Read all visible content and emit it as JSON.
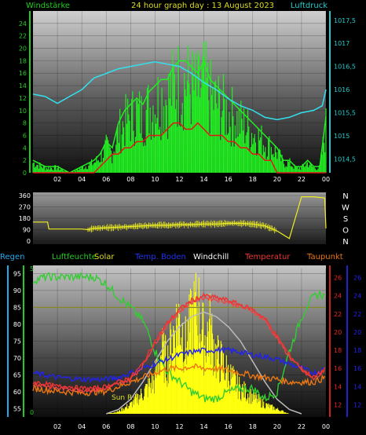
{
  "header": {
    "left_label": "Windstärke",
    "title": "24 hour graph day : 13 August 2023",
    "right_label": "Luftdruck"
  },
  "legend_row": {
    "regen": "Regen",
    "luftfeuchte": "Luftfeuchte",
    "solar": "Solar",
    "temp_boden": "Temp. Boden",
    "windchill": "Windchill",
    "temperatur": "Temperatur",
    "taupunkt": "Taupunkt"
  },
  "annotations": {
    "sun_rise": "Sun R"
  },
  "colors": {
    "wind": "#22ee22",
    "gust": "#e01818",
    "pressure": "#33e0ee",
    "direction": "#eeee22",
    "humidity": "#33cc33",
    "solar": "#ffff10",
    "soil_temp": "#2222ee",
    "windchill": "#ffffff",
    "temperature": "#ee3333",
    "dewpoint": "#ee7711",
    "solar_max": "#bbbbbb",
    "rain": "#888822",
    "ink_green": "#22cc22",
    "ink_red": "#ee2222",
    "ink_blue": "#2222ee",
    "ink_cyan": "#22cccc"
  },
  "chart_data": [
    {
      "type": "line",
      "name_ref": "wind",
      "x_ticks": [
        "02",
        "04",
        "06",
        "08",
        "10",
        "12",
        "14",
        "16",
        "18",
        "20",
        "22",
        "00"
      ],
      "xlim": [
        0,
        24
      ],
      "y_left_ticks": [
        "0",
        "2",
        "4",
        "6",
        "8",
        "10",
        "12",
        "14",
        "16",
        "18",
        "20",
        "22",
        "24"
      ],
      "ylim_left": [
        0,
        26
      ],
      "y_right_ticks": [
        "1014,5",
        "1015",
        "1015,5",
        "1016",
        "1016,5",
        "1017",
        "1017,5"
      ],
      "ylim_right": [
        1014.2,
        1017.7
      ],
      "series": [
        {
          "key": "wind",
          "x": [
            0,
            1,
            2,
            3,
            4,
            5,
            5.5,
            6,
            6.5,
            7,
            7.5,
            8,
            8.5,
            9,
            9.5,
            10,
            10.5,
            11,
            11.5,
            12,
            12.5,
            13,
            13.5,
            14,
            14.5,
            15,
            15.5,
            16,
            16.5,
            17,
            17.5,
            18,
            18.5,
            19,
            19.5,
            20,
            20.5,
            21,
            21.5,
            22,
            22.5,
            23,
            23.5,
            24
          ],
          "values": [
            2,
            1,
            1,
            0,
            1,
            2,
            3,
            5,
            4,
            8,
            10,
            11,
            12,
            11,
            13,
            14,
            15,
            15,
            17,
            18,
            18,
            17,
            16,
            18,
            15,
            14,
            13,
            12,
            11,
            10,
            9,
            8,
            7,
            6,
            5,
            4,
            2,
            2,
            1,
            1,
            2,
            1,
            1,
            9
          ]
        },
        {
          "key": "gust",
          "x": [
            0,
            5,
            5.5,
            6,
            6.5,
            7,
            7.5,
            8,
            8.5,
            9,
            9.5,
            10,
            10.5,
            11,
            11.5,
            12,
            12.5,
            13,
            13.5,
            14,
            14.5,
            15,
            15.5,
            16,
            16.5,
            17,
            17.5,
            18,
            18.5,
            19,
            19.5,
            20,
            21,
            24
          ],
          "values": [
            0,
            0,
            1,
            2,
            3,
            3,
            4,
            4,
            5,
            5,
            6,
            6,
            6,
            7,
            8,
            8,
            7,
            7,
            8,
            7,
            6,
            6,
            6,
            5,
            5,
            4,
            4,
            3,
            3,
            2,
            2,
            0,
            0,
            0
          ]
        },
        {
          "key": "pressure",
          "x": [
            0,
            1,
            2,
            3,
            4,
            5,
            6,
            7,
            8,
            9,
            10,
            11,
            12,
            13,
            14,
            15,
            16,
            17,
            18,
            19,
            20,
            21,
            22,
            23,
            23.7,
            24
          ],
          "values": [
            1015.9,
            1015.85,
            1015.7,
            1015.85,
            1016.0,
            1016.25,
            1016.35,
            1016.45,
            1016.5,
            1016.55,
            1016.6,
            1016.55,
            1016.5,
            1016.35,
            1016.15,
            1016.0,
            1015.8,
            1015.65,
            1015.55,
            1015.4,
            1015.35,
            1015.4,
            1015.5,
            1015.55,
            1015.65,
            1016.0
          ]
        }
      ]
    },
    {
      "type": "line",
      "name_ref": "wind_direction",
      "xlim": [
        0,
        24
      ],
      "ylim": [
        0,
        360
      ],
      "y_ticks": [
        "0",
        "90",
        "180",
        "270",
        "360"
      ],
      "compass_labels": [
        "N",
        "W",
        "S",
        "O",
        "N"
      ],
      "series": [
        {
          "key": "direction",
          "x": [
            0,
            1.2,
            1.3,
            2,
            3,
            4,
            4.5,
            5,
            6,
            7,
            8,
            9,
            10,
            11,
            12,
            13,
            14,
            15,
            16,
            17,
            18,
            19,
            20,
            21,
            22,
            22.8,
            23,
            23.9,
            24
          ],
          "values": [
            150,
            150,
            95,
            95,
            95,
            95,
            90,
            100,
            105,
            110,
            115,
            120,
            125,
            125,
            130,
            130,
            135,
            135,
            140,
            140,
            135,
            120,
            80,
            20,
            350,
            350,
            350,
            340,
            100
          ]
        }
      ]
    },
    {
      "type": "line",
      "name_ref": "climate",
      "xlim": [
        0,
        24
      ],
      "y_left_ticks": [
        "55",
        "60",
        "65",
        "70",
        "75",
        "80",
        "85",
        "90",
        "95"
      ],
      "ylim_left": [
        53.5,
        96.5
      ],
      "y_right_ticks_a": [
        "12",
        "14",
        "16",
        "18",
        "20",
        "22",
        "24",
        "26"
      ],
      "y_right_ticks_b": [
        "12",
        "14",
        "16",
        "18",
        "20",
        "22",
        "24",
        "26"
      ],
      "ylim_right": [
        11,
        27
      ],
      "rain_ticks": [
        "0",
        "5"
      ],
      "series": [
        {
          "key": "humidity",
          "x": [
            0,
            1,
            2,
            3,
            4,
            5,
            6,
            7,
            8,
            9,
            9.5,
            10,
            10.5,
            11,
            12,
            13,
            14,
            15,
            16,
            17,
            18,
            19,
            20,
            21,
            22,
            22.5,
            23,
            23.5,
            24
          ],
          "values": [
            93,
            94,
            94,
            94,
            94,
            94,
            92,
            88,
            85,
            81,
            77,
            72,
            69,
            66,
            63,
            60,
            58,
            58,
            60,
            61,
            61,
            58,
            60,
            72,
            82,
            86,
            88,
            89,
            88
          ]
        },
        {
          "key": "rain",
          "x": [
            0,
            24
          ],
          "values": [
            85,
            85
          ]
        },
        {
          "key": "temperature",
          "x": [
            0,
            1,
            2,
            3,
            4,
            5,
            6,
            7,
            8,
            9,
            10,
            11,
            12,
            13,
            14,
            15,
            16,
            17,
            18,
            19,
            20,
            21,
            22,
            23,
            24
          ],
          "values": [
            14.5,
            14.3,
            14.0,
            14.0,
            13.8,
            13.8,
            14.0,
            14.5,
            15.0,
            16.5,
            19.0,
            21.0,
            22.5,
            23.5,
            24.0,
            23.8,
            23.5,
            23.0,
            22.5,
            21.5,
            19.5,
            17.5,
            16.0,
            15.0,
            16.0
          ]
        },
        {
          "key": "soil_temp",
          "x": [
            0,
            2,
            4,
            6,
            7,
            8,
            9,
            10,
            11,
            12,
            13,
            14,
            15,
            16,
            17,
            18,
            19,
            20,
            21,
            22,
            23,
            24
          ],
          "values": [
            15.5,
            15.0,
            14.8,
            14.8,
            15.0,
            15.5,
            16.0,
            16.5,
            17.0,
            17.5,
            17.8,
            18.0,
            18.0,
            18.0,
            17.8,
            17.5,
            17.3,
            17.0,
            16.5,
            16.0,
            15.5,
            16.0
          ]
        },
        {
          "key": "dewpoint",
          "x": [
            0,
            2,
            4,
            6,
            7,
            8,
            9,
            10,
            11,
            12,
            13,
            14,
            15,
            16,
            17,
            18,
            19,
            20,
            21,
            22,
            23,
            24
          ],
          "values": [
            13.8,
            13.5,
            13.3,
            13.5,
            14.0,
            14.5,
            15.0,
            15.5,
            16.0,
            16.0,
            16.2,
            16.0,
            16.0,
            15.8,
            15.5,
            15.2,
            15.0,
            14.8,
            14.5,
            14.5,
            14.5,
            15.0
          ]
        },
        {
          "key": "windchill",
          "x": [
            0,
            1,
            2,
            3,
            4,
            5,
            6,
            7,
            8,
            9,
            10,
            11,
            12,
            13,
            14,
            15,
            16,
            17,
            18,
            19,
            20,
            21,
            22,
            23,
            24
          ],
          "values": [
            14.3,
            14.1,
            13.8,
            13.8,
            13.6,
            13.6,
            13.8,
            14.3,
            14.8,
            16.3,
            18.8,
            20.8,
            22.3,
            23.3,
            23.8,
            23.6,
            23.3,
            22.8,
            22.3,
            21.3,
            19.3,
            17.3,
            15.8,
            14.8,
            15.8
          ]
        },
        {
          "key": "solar",
          "x": [
            6,
            7,
            8,
            9,
            10,
            10.5,
            11,
            11.5,
            12,
            12.5,
            13,
            13.5,
            14,
            14.5,
            15,
            15.5,
            16,
            17,
            18,
            19,
            20,
            21
          ],
          "values": [
            0,
            0.02,
            0.08,
            0.18,
            0.3,
            0.55,
            0.45,
            0.7,
            0.85,
            0.6,
            0.8,
            0.95,
            0.65,
            0.75,
            0.5,
            0.45,
            0.35,
            0.22,
            0.15,
            0.08,
            0.04,
            0
          ]
        },
        {
          "key": "solar_max",
          "x": [
            6,
            7,
            8,
            9,
            10,
            11,
            12,
            13,
            14,
            15,
            16,
            17,
            18,
            19,
            20,
            21,
            22
          ],
          "values": [
            0,
            0.03,
            0.1,
            0.22,
            0.36,
            0.5,
            0.6,
            0.67,
            0.7,
            0.67,
            0.6,
            0.5,
            0.36,
            0.22,
            0.1,
            0.03,
            0
          ]
        }
      ]
    }
  ]
}
